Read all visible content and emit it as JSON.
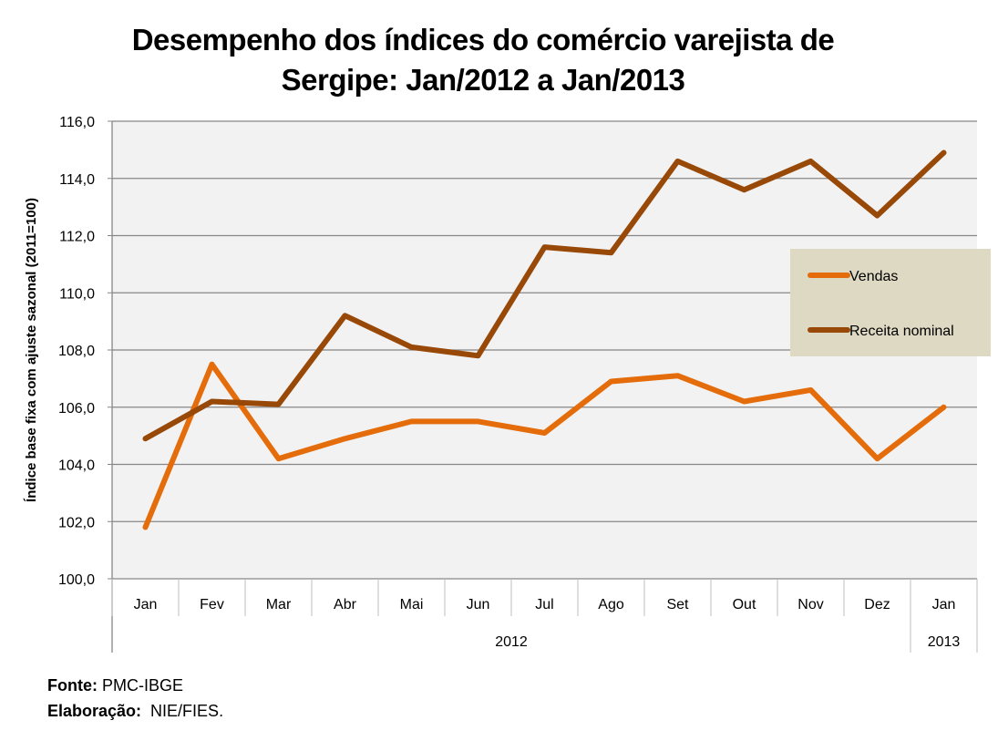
{
  "chart_data": {
    "type": "line",
    "title": "Desempenho dos índices do comércio varejista de Sergipe: Jan/2012 a Jan/2013",
    "title_lines": [
      "Desempenho dos índices do comércio varejista de",
      "Sergipe: Jan/2012 a Jan/2013"
    ],
    "xlabel": "",
    "ylabel": "Índice base fixa com ajuste sazonal  (2011=100)",
    "ylim": [
      100,
      116
    ],
    "yticks": [
      "100,0",
      "102,0",
      "104,0",
      "106,0",
      "108,0",
      "110,0",
      "112,0",
      "114,0",
      "116,0"
    ],
    "ytick_values": [
      100,
      102,
      104,
      106,
      108,
      110,
      112,
      114,
      116
    ],
    "categories": [
      "Jan",
      "Fev",
      "Mar",
      "Abr",
      "Mai",
      "Jun",
      "Jul",
      "Ago",
      "Set",
      "Out",
      "Nov",
      "Dez",
      "Jan"
    ],
    "year_groups": [
      {
        "label": "2012",
        "count": 12
      },
      {
        "label": "2013",
        "count": 1
      }
    ],
    "grid": true,
    "legend_position": "right",
    "series": [
      {
        "name": "Vendas",
        "color": "#E46C0A",
        "values": [
          101.8,
          107.5,
          104.2,
          104.9,
          105.5,
          105.5,
          105.1,
          106.9,
          107.1,
          106.2,
          106.6,
          104.2,
          106.0
        ]
      },
      {
        "name": "Receita nominal",
        "color": "#984807",
        "values": [
          104.9,
          106.2,
          106.1,
          109.2,
          108.1,
          107.8,
          111.6,
          111.4,
          114.6,
          113.6,
          114.6,
          112.7,
          114.9
        ]
      }
    ],
    "colors": {
      "plot_bg": "#F2F2F2",
      "legend_bg": "#DDD9C3",
      "grid": "#868686"
    }
  },
  "footer": {
    "source_label": "Fonte:",
    "source_value": " PMC-IBGE",
    "credit_label": "Elaboração:",
    "credit_value": "  NIE/FIES."
  }
}
